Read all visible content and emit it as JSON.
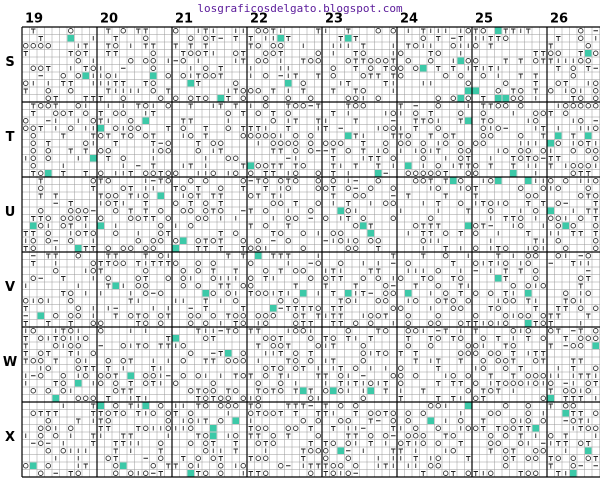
{
  "header": {
    "title": "losgraficosdelgato.blogspot.com"
  },
  "columns": [
    "19",
    "20",
    "21",
    "22",
    "23",
    "24",
    "25",
    "26"
  ],
  "rows": [
    "S",
    "T",
    "U",
    "V",
    "W",
    "X"
  ]
}
